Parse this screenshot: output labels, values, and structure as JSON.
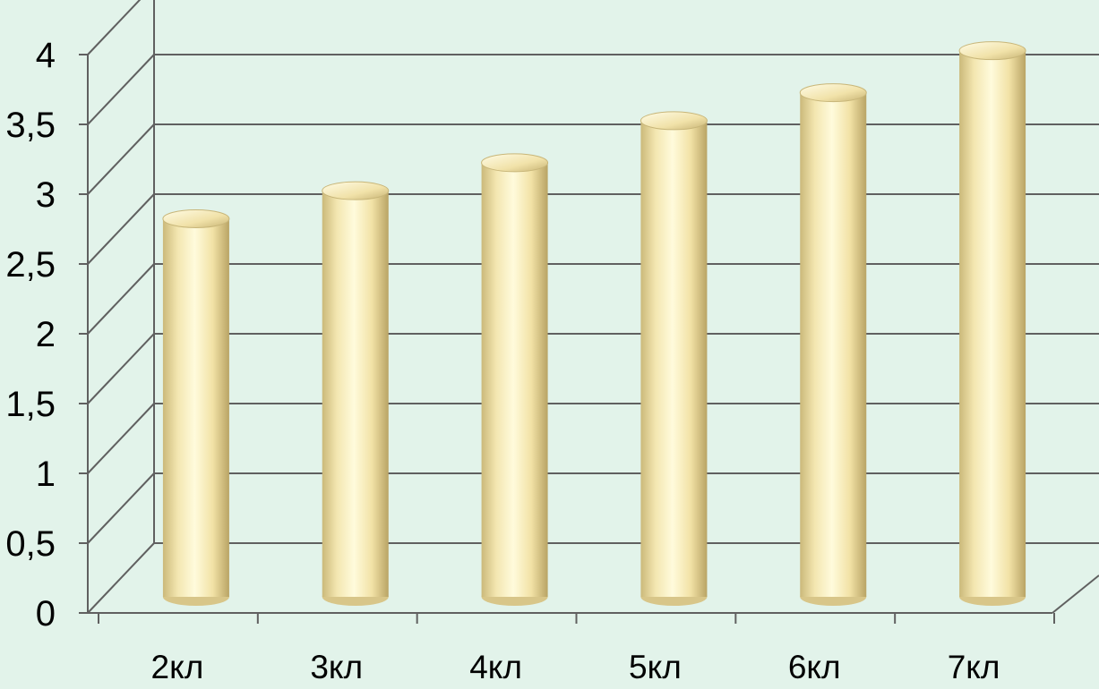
{
  "chart_data": {
    "type": "bar",
    "style": "3d-cylinder",
    "categories": [
      "2кл",
      "3кл",
      "4кл",
      "5кл",
      "6кл",
      "7кл"
    ],
    "values": [
      2.7,
      2.9,
      3.1,
      3.4,
      3.6,
      3.9
    ],
    "y_tick_labels": [
      "0",
      "0,5",
      "1",
      "1,5",
      "2",
      "2,5",
      "3",
      "3,5",
      "4"
    ],
    "ylim": [
      0,
      4
    ],
    "y_step": 0.5,
    "title": "",
    "xlabel": "",
    "ylabel": "",
    "grid": true,
    "legend": "none",
    "colors": {
      "background": "#e2f3ea",
      "bar_light": "#fffbdc",
      "bar_mid": "#f6e9b3",
      "bar_dark": "#c9b674",
      "grid": "#606060"
    }
  }
}
